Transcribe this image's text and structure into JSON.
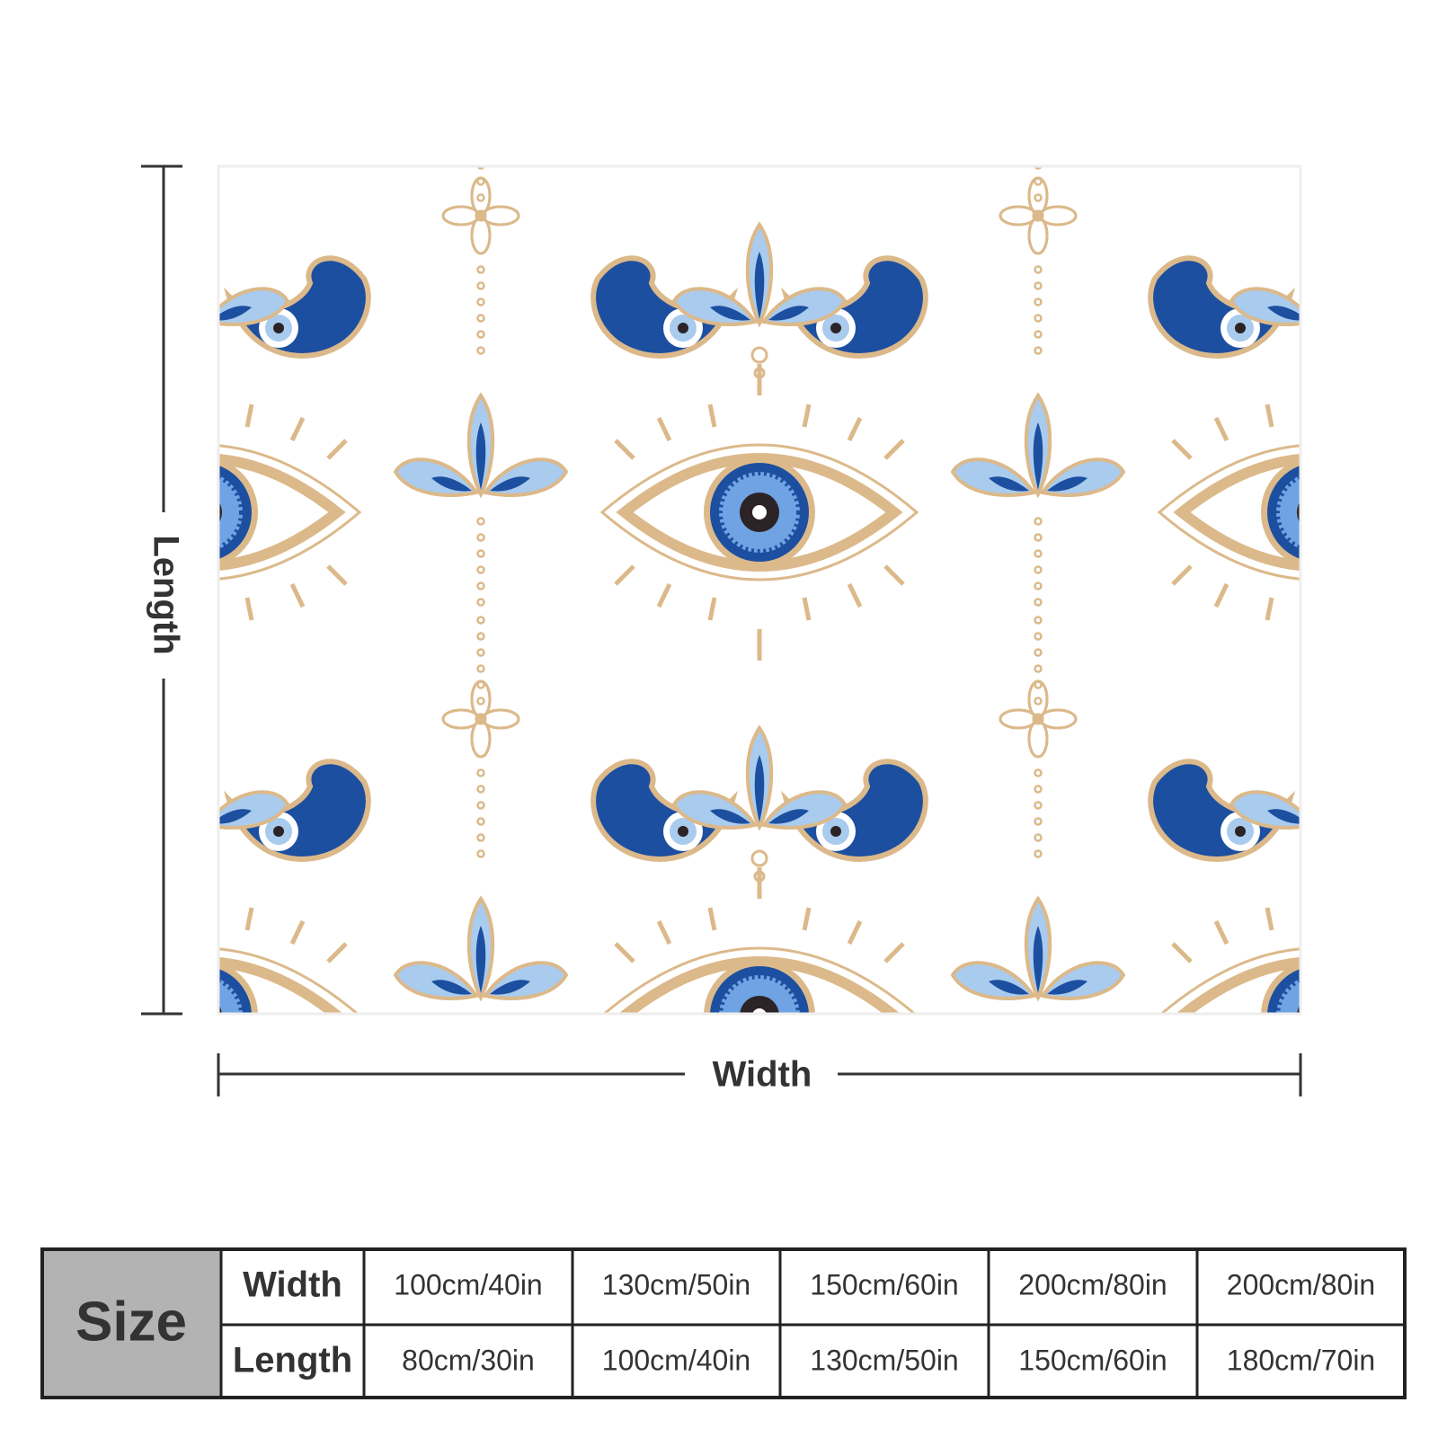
{
  "labels": {
    "length": "Length",
    "width": "Width"
  },
  "table": {
    "title": "Size",
    "rows": [
      [
        "Width",
        "100cm/40in",
        "130cm/50in",
        "150cm/60in",
        "200cm/80in",
        "200cm/80in"
      ],
      [
        "Length",
        "80cm/30in",
        "100cm/40in",
        "130cm/50in",
        "150cm/60in",
        "180cm/70in"
      ]
    ]
  }
}
